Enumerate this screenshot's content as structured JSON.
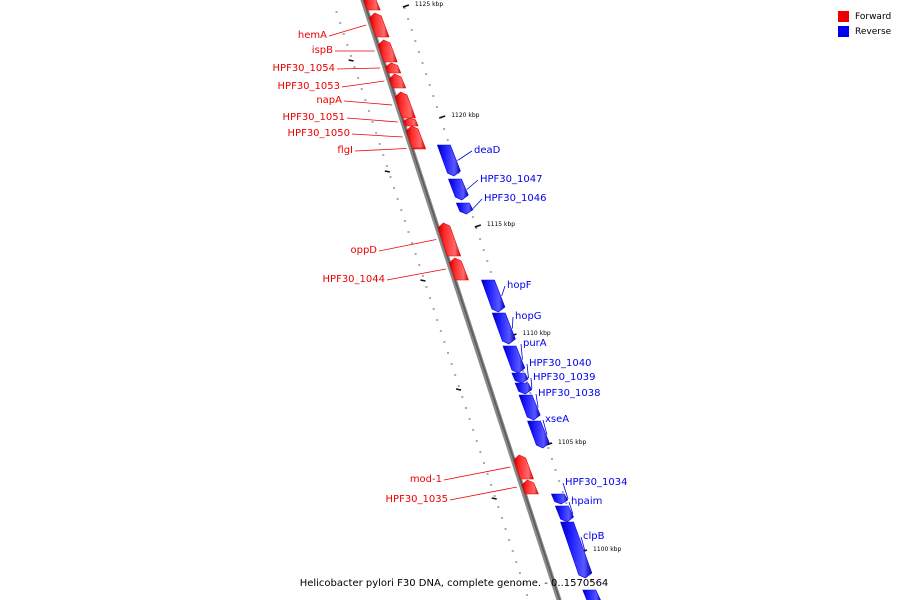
{
  "colors": {
    "forward": "#ee0000",
    "reverse": "#0000ee",
    "axis": "#999999"
  },
  "legend": {
    "forward": "Forward",
    "reverse": "Reverse"
  },
  "caption": "Helicobacter pylori F30 DNA, complete genome. - 0..1570564",
  "scale_marks": [
    {
      "label": "1125 kbp",
      "kbp": 1125
    },
    {
      "label": "1120 kbp",
      "kbp": 1120
    },
    {
      "label": "1115 kbp",
      "kbp": 1115
    },
    {
      "label": "1110 kbp",
      "kbp": 1110
    },
    {
      "label": "1105 kbp",
      "kbp": 1105
    },
    {
      "label": "1100 kbp",
      "kbp": 1100
    }
  ],
  "genes": [
    {
      "name": "",
      "strand": "forward"
    },
    {
      "name": "hemA",
      "strand": "forward"
    },
    {
      "name": "ispB",
      "strand": "forward"
    },
    {
      "name": "HPF30_1054",
      "strand": "forward"
    },
    {
      "name": "HPF30_1053",
      "strand": "forward"
    },
    {
      "name": "napA",
      "strand": "forward"
    },
    {
      "name": "HPF30_1051",
      "strand": "forward"
    },
    {
      "name": "HPF30_1050",
      "strand": "forward"
    },
    {
      "name": "flgI",
      "strand": "forward"
    },
    {
      "name": "deaD",
      "strand": "reverse"
    },
    {
      "name": "HPF30_1047",
      "strand": "reverse"
    },
    {
      "name": "HPF30_1046",
      "strand": "reverse"
    },
    {
      "name": "oppD",
      "strand": "forward"
    },
    {
      "name": "HPF30_1044",
      "strand": "forward"
    },
    {
      "name": "hopF",
      "strand": "reverse"
    },
    {
      "name": "hopG",
      "strand": "reverse"
    },
    {
      "name": "purA",
      "strand": "reverse"
    },
    {
      "name": "HPF30_1040",
      "strand": "reverse"
    },
    {
      "name": "HPF30_1039",
      "strand": "reverse"
    },
    {
      "name": "HPF30_1038",
      "strand": "reverse"
    },
    {
      "name": "xseA",
      "strand": "reverse"
    },
    {
      "name": "mod-1",
      "strand": "forward"
    },
    {
      "name": "HPF30_1035",
      "strand": "forward"
    },
    {
      "name": "HPF30_1034",
      "strand": "reverse"
    },
    {
      "name": "hpaim",
      "strand": "reverse"
    },
    {
      "name": "clpB",
      "strand": "reverse"
    },
    {
      "name": "",
      "strand": "reverse"
    }
  ]
}
